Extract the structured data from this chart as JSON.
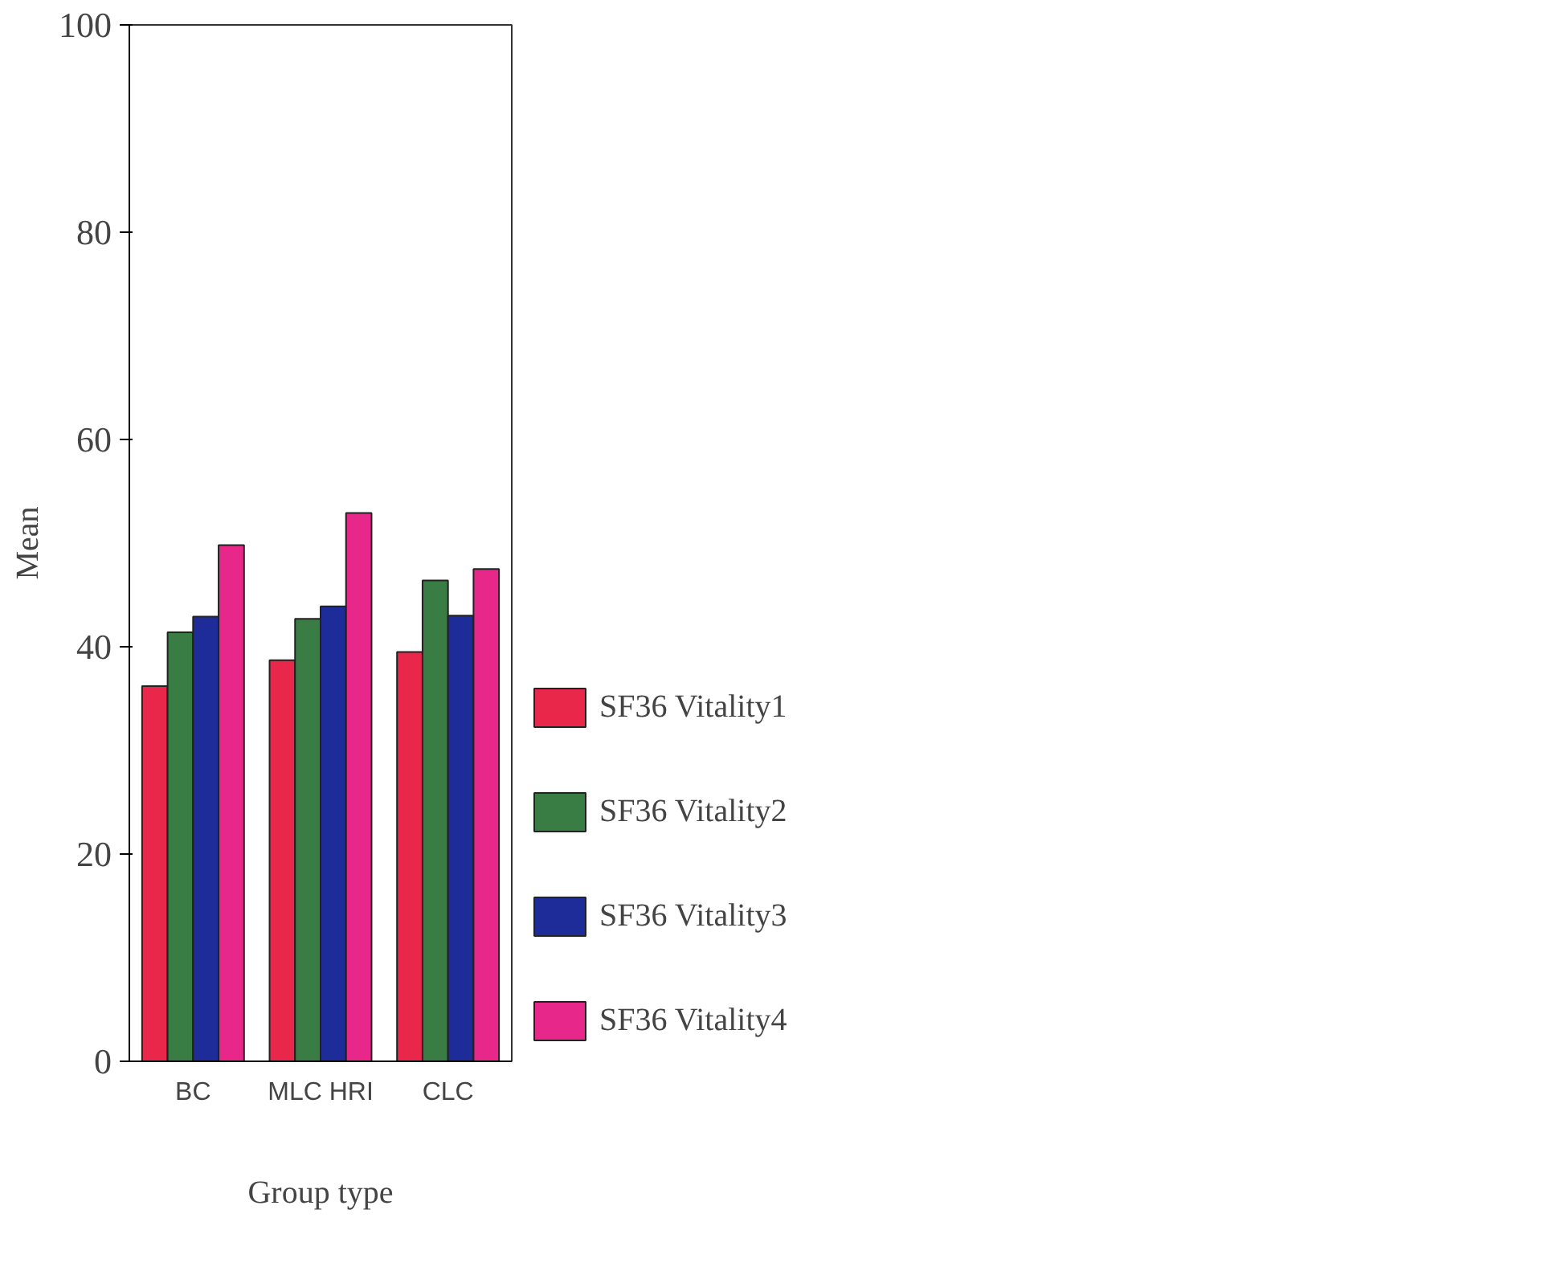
{
  "chart_data": {
    "type": "bar",
    "xlabel": "Group type",
    "ylabel": "Mean",
    "categories": [
      "BC",
      "MLC HRI",
      "CLC"
    ],
    "series": [
      {
        "name": "SF36 Vitality1",
        "color": "#e8274a",
        "values": [
          36.2,
          38.7,
          39.5
        ]
      },
      {
        "name": "SF36 Vitality2",
        "color": "#3a7d44",
        "values": [
          41.4,
          42.7,
          46.4
        ]
      },
      {
        "name": "SF36 Vitality3",
        "color": "#1e2c9a",
        "values": [
          42.9,
          43.9,
          43.0
        ]
      },
      {
        "name": "SF36 Vitality4",
        "color": "#e8278a",
        "values": [
          49.8,
          52.9,
          47.5
        ]
      }
    ],
    "ylim": [
      0,
      100
    ],
    "yticks": [
      0,
      20,
      40,
      60,
      80,
      100
    ],
    "grid": false,
    "legend": "right"
  }
}
